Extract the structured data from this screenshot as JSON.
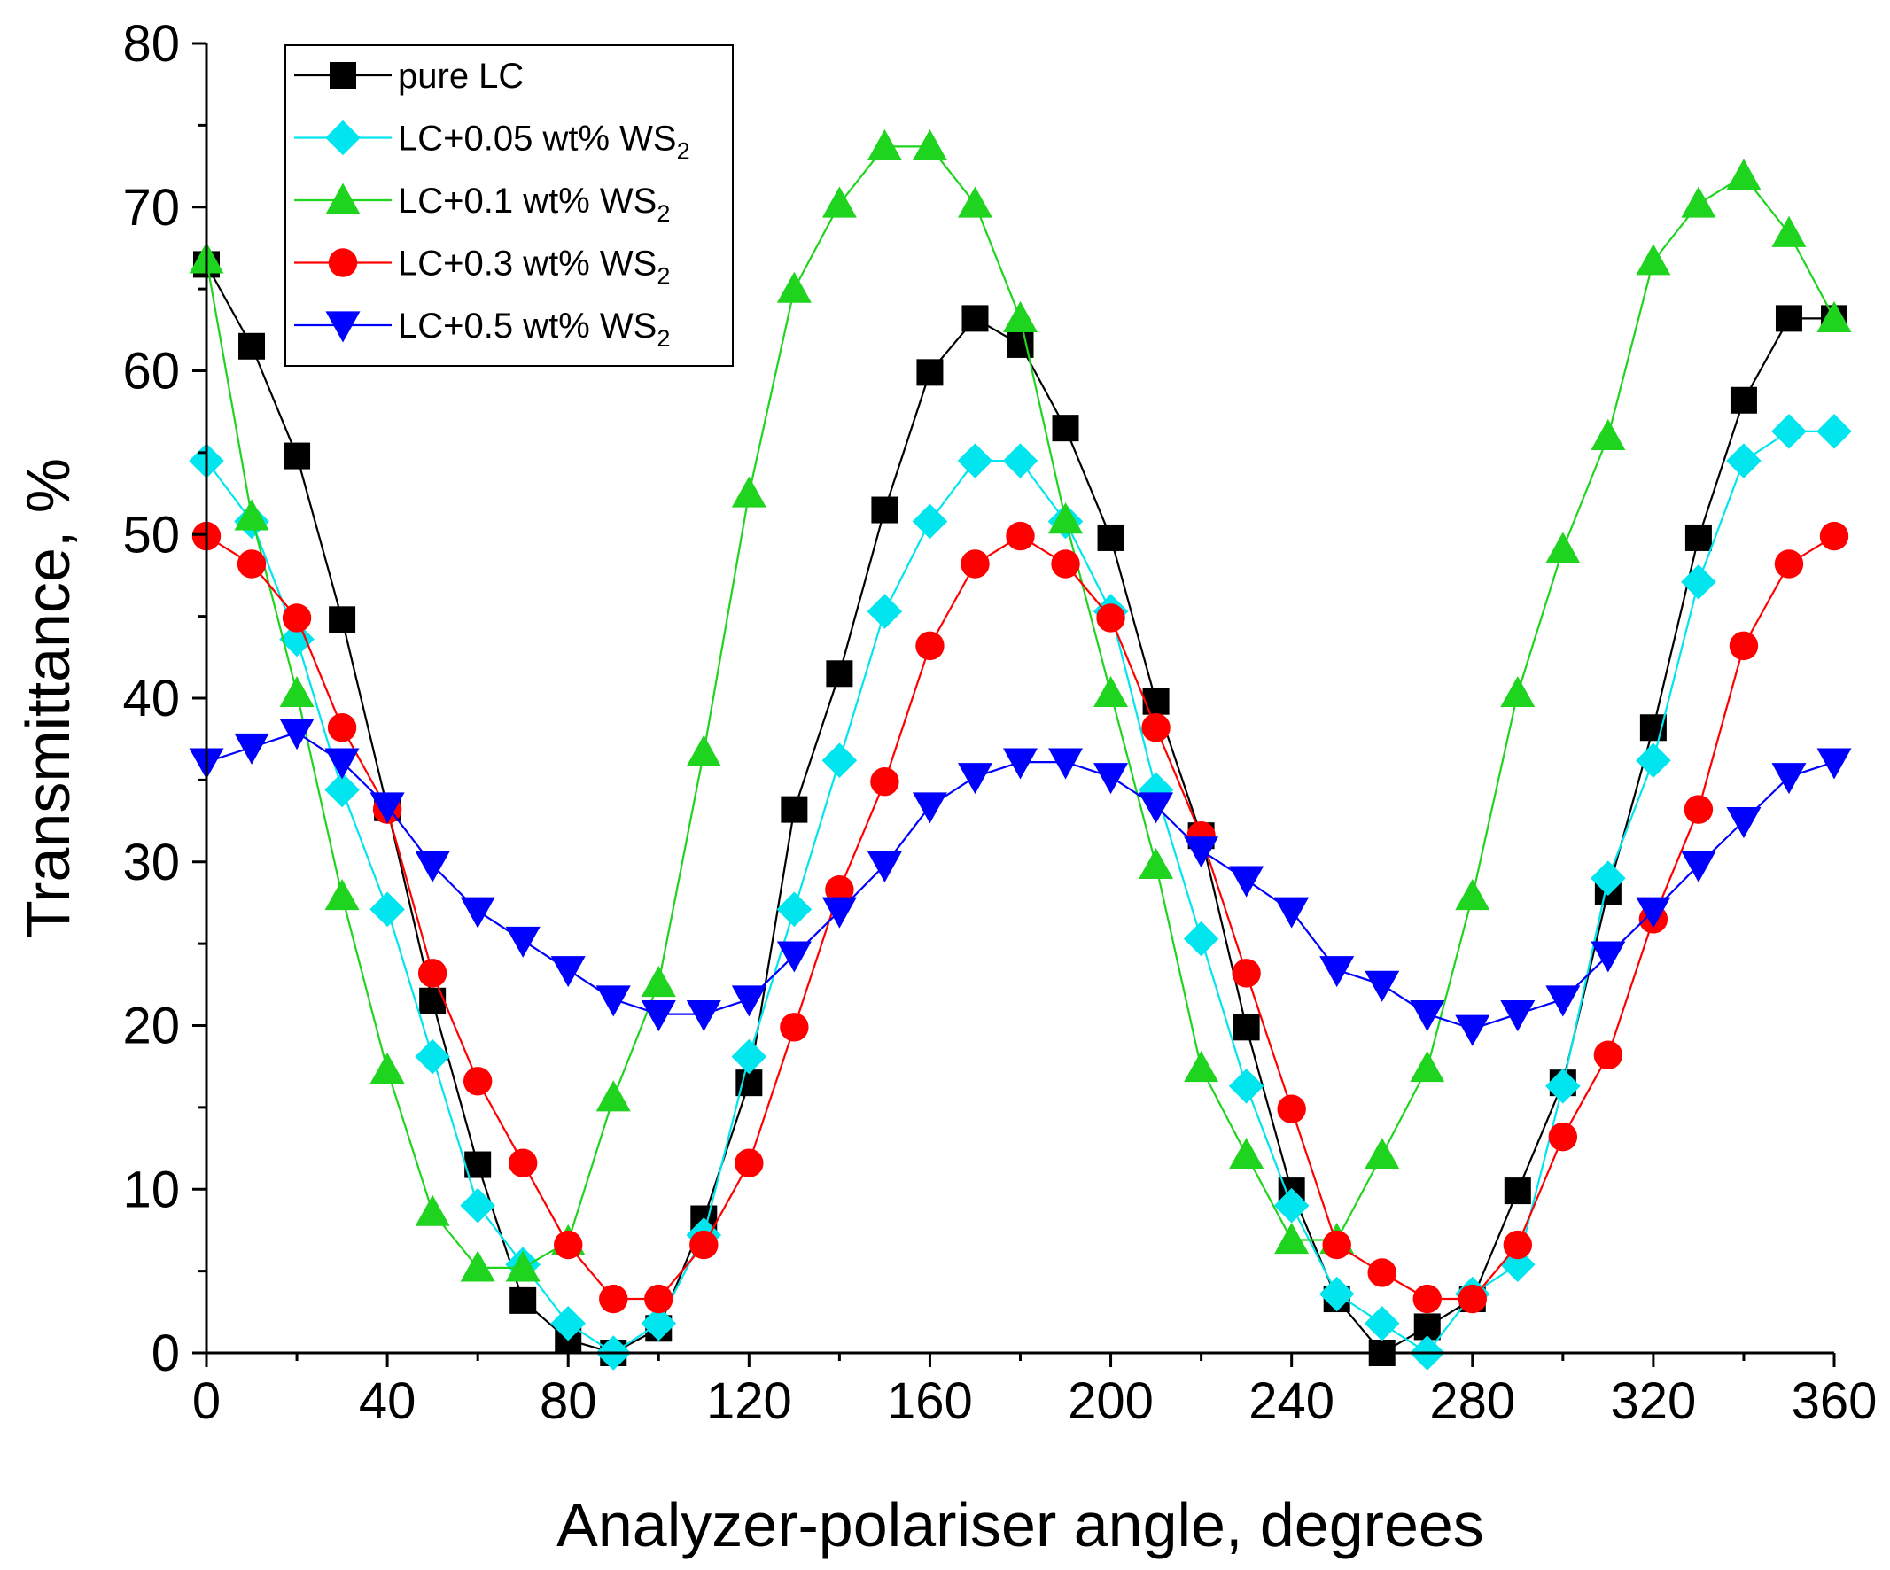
{
  "chart_data": {
    "type": "line",
    "title": "",
    "xlabel": "Analyzer-polariser angle, degrees",
    "ylabel": "Transmittance, %",
    "xlim": [
      0,
      360
    ],
    "ylim": [
      0,
      80
    ],
    "xticks": [
      0,
      40,
      80,
      120,
      160,
      200,
      240,
      280,
      320,
      360
    ],
    "yticks": [
      0,
      10,
      20,
      30,
      40,
      50,
      60,
      70,
      80
    ],
    "xtick_labels": [
      "0",
      "40",
      "80",
      "120",
      "160",
      "200",
      "240",
      "280",
      "320",
      "360"
    ],
    "ytick_labels": [
      "0",
      "10",
      "20",
      "30",
      "40",
      "50",
      "60",
      "70",
      "80"
    ],
    "grid": false,
    "legend_position": "top-left",
    "x": [
      0,
      10,
      20,
      30,
      40,
      50,
      60,
      70,
      80,
      90,
      100,
      110,
      120,
      130,
      140,
      150,
      160,
      170,
      180,
      190,
      200,
      210,
      220,
      230,
      240,
      250,
      260,
      270,
      280,
      290,
      300,
      310,
      320,
      330,
      340,
      350,
      360
    ],
    "series": [
      {
        "name": "pure LC",
        "legend_main": "pure LC",
        "legend_sub": "",
        "color": "#000000",
        "marker": "square",
        "values": [
          66.5,
          61.5,
          54.8,
          44.8,
          33.3,
          21.5,
          11.5,
          3.2,
          0.8,
          0.0,
          1.5,
          8.2,
          16.5,
          33.2,
          41.5,
          51.5,
          59.9,
          63.2,
          61.6,
          56.5,
          49.8,
          39.8,
          31.6,
          19.9,
          9.9,
          3.3,
          0.0,
          1.6,
          3.3,
          9.9,
          16.5,
          28.2,
          38.2,
          49.8,
          58.2,
          63.2,
          63.2
        ]
      },
      {
        "name": "LC+0.05 wt% WS2",
        "legend_main": "LC+0.05 wt% WS",
        "legend_sub": "2",
        "color": "#00e5ee",
        "marker": "diamond",
        "values": [
          54.5,
          50.8,
          43.6,
          34.4,
          27.1,
          18.1,
          9.0,
          5.4,
          1.8,
          0.0,
          1.8,
          7.2,
          18.1,
          27.1,
          36.2,
          45.3,
          50.8,
          54.5,
          54.5,
          50.8,
          45.3,
          34.4,
          25.3,
          16.3,
          9.0,
          3.6,
          1.8,
          0.0,
          3.6,
          5.4,
          16.3,
          29.0,
          36.2,
          47.1,
          54.5,
          56.3,
          56.3
        ]
      },
      {
        "name": "LC+0.1 wt% WS2",
        "legend_main": "LC+0.1 wt% WS",
        "legend_sub": "2",
        "color": "#1fd41f",
        "marker": "triangle-up",
        "values": [
          66.8,
          51.1,
          40.3,
          27.9,
          17.3,
          8.6,
          5.2,
          5.2,
          6.8,
          15.6,
          22.6,
          36.7,
          52.5,
          65.0,
          70.2,
          73.7,
          73.7,
          70.2,
          63.2,
          50.9,
          40.3,
          29.8,
          17.4,
          12.1,
          6.9,
          6.9,
          12.1,
          17.4,
          27.9,
          40.3,
          49.1,
          56.0,
          66.7,
          70.2,
          71.9,
          68.4,
          63.2
        ]
      },
      {
        "name": "LC+0.3 wt% WS2",
        "legend_main": "LC+0.3 wt% WS",
        "legend_sub": "2",
        "color": "#ff0000",
        "marker": "circle",
        "values": [
          49.9,
          48.2,
          44.9,
          38.2,
          33.2,
          23.2,
          16.6,
          11.6,
          6.6,
          3.3,
          3.3,
          6.6,
          11.6,
          19.9,
          28.3,
          34.9,
          43.2,
          48.2,
          49.9,
          48.2,
          44.9,
          38.2,
          31.6,
          23.2,
          14.9,
          6.6,
          4.9,
          3.3,
          3.3,
          6.6,
          13.2,
          18.2,
          26.5,
          33.2,
          43.2,
          48.2,
          49.9
        ]
      },
      {
        "name": "LC+0.5 wt% WS2",
        "legend_main": "LC+0.5 wt% WS",
        "legend_sub": "2",
        "color": "#0000ff",
        "marker": "triangle-down",
        "values": [
          36.1,
          37.0,
          37.9,
          36.1,
          33.4,
          29.8,
          27.0,
          25.2,
          23.4,
          21.6,
          20.7,
          20.7,
          21.6,
          24.3,
          27.0,
          29.8,
          33.4,
          35.2,
          36.1,
          36.1,
          35.2,
          33.4,
          30.7,
          28.9,
          27.0,
          23.4,
          22.5,
          20.7,
          19.8,
          20.7,
          21.6,
          24.3,
          27.0,
          29.8,
          32.5,
          35.2,
          36.1
        ]
      }
    ]
  }
}
